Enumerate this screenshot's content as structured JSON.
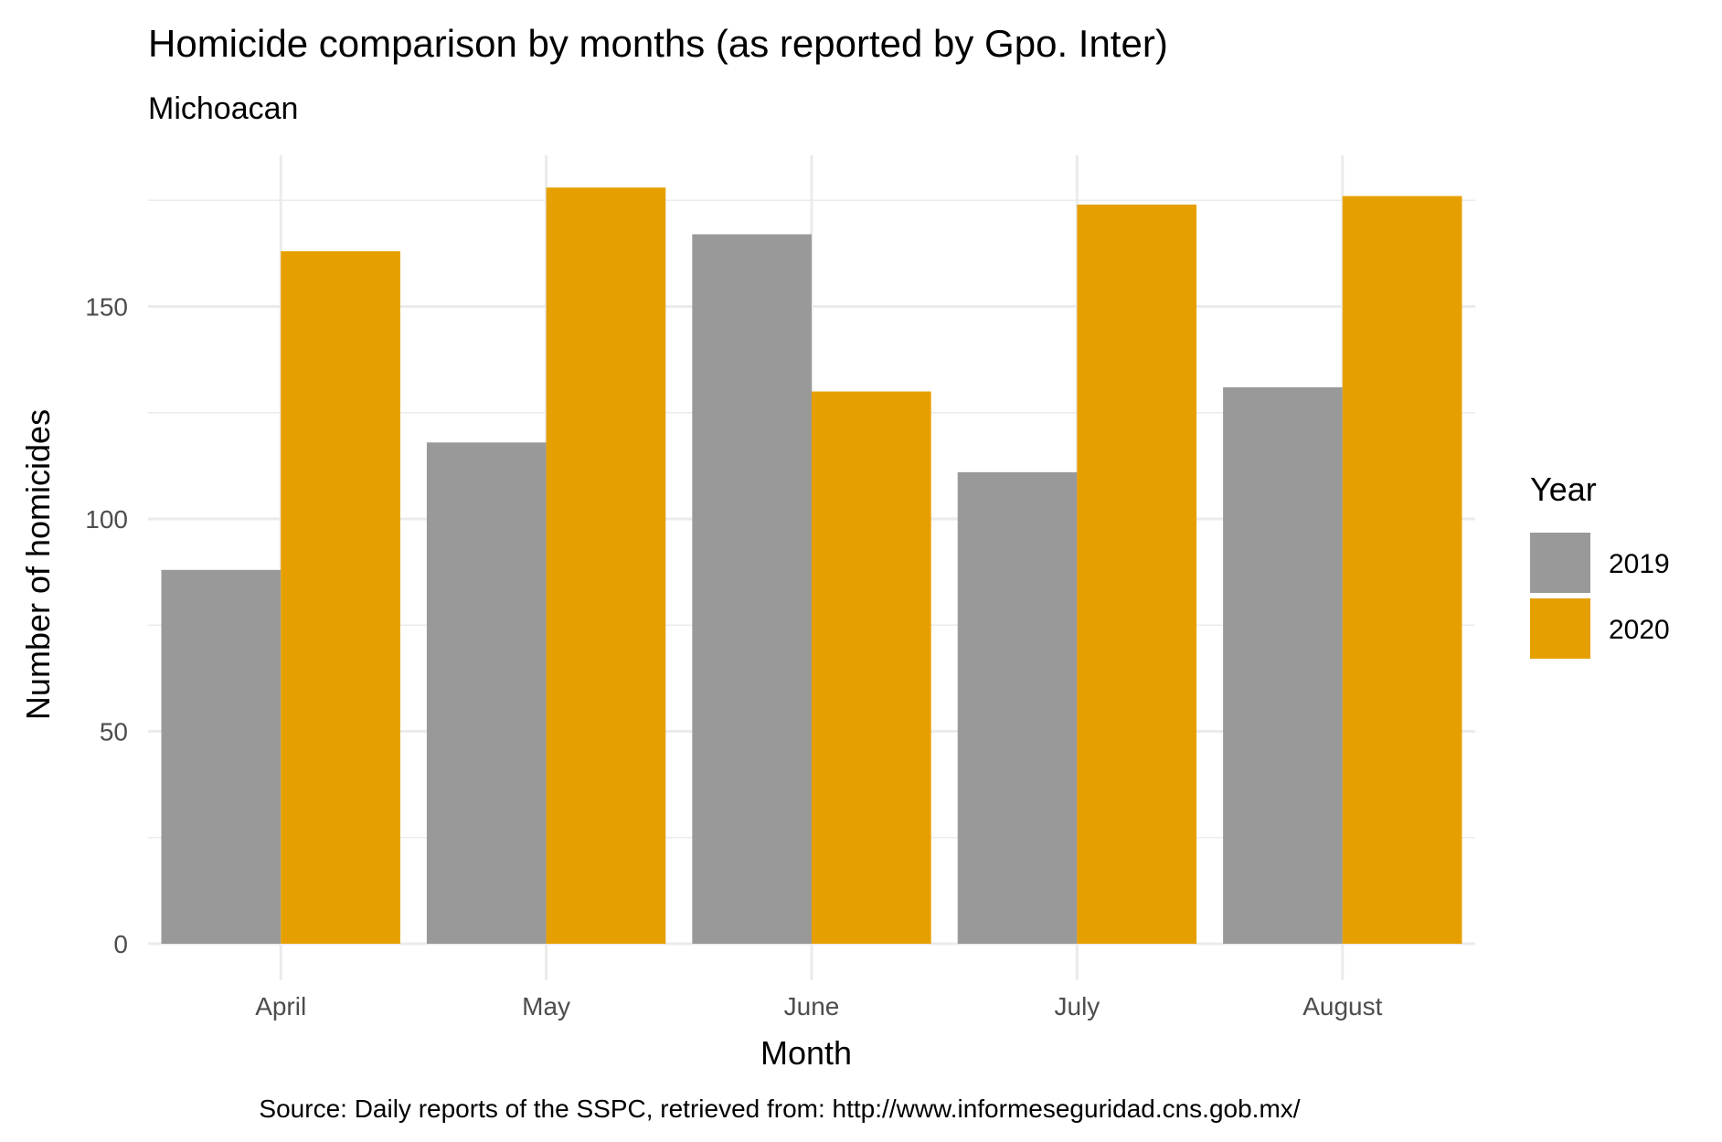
{
  "chart_data": {
    "type": "bar",
    "title": "Homicide comparison by months (as reported by Gpo. Inter)",
    "subtitle": "Michoacan",
    "xlabel": "Month",
    "ylabel": "Number of homicides",
    "caption": "Source: Daily reports of the SSPC, retrieved from: http://www.informeseguridad.cns.gob.mx/",
    "categories": [
      "April",
      "May",
      "June",
      "July",
      "August"
    ],
    "series": [
      {
        "name": "2019",
        "color": "#999999",
        "values": [
          88,
          118,
          167,
          111,
          131
        ]
      },
      {
        "name": "2020",
        "color": "#E69F00",
        "values": [
          163,
          178,
          130,
          174,
          176
        ]
      }
    ],
    "ylim": [
      0,
      188
    ],
    "yticks": [
      0,
      50,
      100,
      150
    ],
    "grid": true,
    "legend": {
      "title": "Year",
      "position": "right"
    }
  }
}
